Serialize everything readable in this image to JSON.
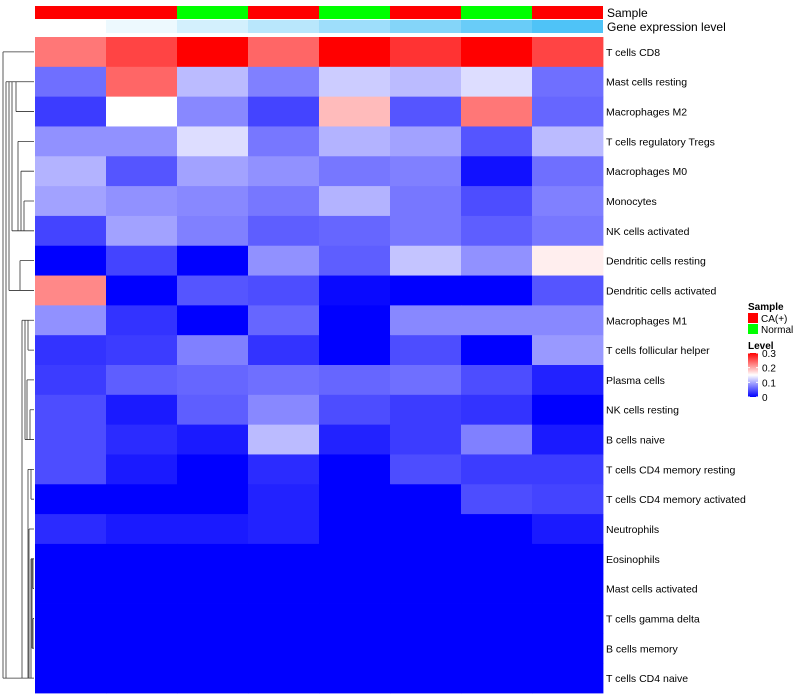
{
  "chart_data": {
    "type": "heatmap",
    "annotation_titles": {
      "sample": "Sample",
      "expression": "Gene expression level"
    },
    "samples": [
      "CA(+)",
      "CA(+)",
      "Normal",
      "CA(+)",
      "Normal",
      "CA(+)",
      "Normal",
      "CA(+)"
    ],
    "expression_levels": [
      0.0,
      0.1,
      0.25,
      0.4,
      0.55,
      0.7,
      0.85,
      1.0
    ],
    "rows": [
      "T cells CD8",
      "Mast cells resting",
      "Macrophages M2",
      "T cells regulatory  Tregs",
      "Macrophages M0",
      "Monocytes",
      "NK cells activated",
      "Dendritic cells resting",
      "Dendritic cells activated",
      "Macrophages M1",
      "T cells follicular helper",
      "Plasma cells",
      "NK cells resting",
      "B cells naive",
      "T cells CD4 memory resting",
      "T cells CD4 memory activated",
      "Neutrophils",
      "Eosinophils",
      "Mast cells activated",
      "T cells gamma delta",
      "B cells memory",
      "T cells CD4 naive"
    ],
    "values": [
      [
        0.23,
        0.26,
        0.3,
        0.24,
        0.3,
        0.27,
        0.3,
        0.26
      ],
      [
        0.065,
        0.24,
        0.11,
        0.075,
        0.12,
        0.11,
        0.13,
        0.065
      ],
      [
        0.035,
        0.15,
        0.08,
        0.04,
        0.19,
        0.05,
        0.23,
        0.06
      ],
      [
        0.085,
        0.085,
        0.13,
        0.07,
        0.105,
        0.095,
        0.05,
        0.11
      ],
      [
        0.105,
        0.05,
        0.095,
        0.085,
        0.07,
        0.075,
        0.01,
        0.065
      ],
      [
        0.095,
        0.085,
        0.08,
        0.07,
        0.105,
        0.07,
        0.045,
        0.075
      ],
      [
        0.04,
        0.095,
        0.075,
        0.055,
        0.06,
        0.07,
        0.055,
        0.07
      ],
      [
        0.0,
        0.04,
        0.0,
        0.085,
        0.055,
        0.115,
        0.085,
        0.16
      ],
      [
        0.22,
        0.0,
        0.05,
        0.045,
        0.005,
        0.0,
        0.0,
        0.05
      ],
      [
        0.085,
        0.03,
        0.0,
        0.06,
        0.0,
        0.08,
        0.08,
        0.08
      ],
      [
        0.03,
        0.035,
        0.075,
        0.03,
        0.0,
        0.045,
        0.0,
        0.09
      ],
      [
        0.035,
        0.055,
        0.06,
        0.065,
        0.06,
        0.065,
        0.045,
        0.02
      ],
      [
        0.045,
        0.015,
        0.055,
        0.08,
        0.045,
        0.035,
        0.03,
        0.0
      ],
      [
        0.045,
        0.025,
        0.015,
        0.11,
        0.02,
        0.035,
        0.075,
        0.015
      ],
      [
        0.045,
        0.015,
        0.0,
        0.025,
        0.0,
        0.045,
        0.035,
        0.035
      ],
      [
        0.0,
        0.0,
        0.0,
        0.02,
        0.0,
        0.0,
        0.045,
        0.04
      ],
      [
        0.025,
        0.015,
        0.015,
        0.02,
        0.0,
        0.0,
        0.0,
        0.015
      ],
      [
        0.0,
        0.0,
        0.0,
        0.0,
        0.0,
        0.0,
        0.0,
        0.0
      ],
      [
        0.0,
        0.0,
        0.0,
        0.0,
        0.0,
        0.0,
        0.0,
        0.0
      ],
      [
        0.0,
        0.0,
        0.0,
        0.0,
        0.0,
        0.0,
        0.0,
        0.0
      ],
      [
        0.0,
        0.0,
        0.0,
        0.0,
        0.0,
        0.0,
        0.0,
        0.0
      ],
      [
        0.0,
        0.0,
        0.0,
        0.0,
        0.0,
        0.0,
        0.0,
        0.0
      ]
    ],
    "color_scale": {
      "min": 0,
      "mid": 0.15,
      "max": 0.3,
      "low": "#0000ff",
      "mid_color": "#ffffff",
      "high": "#ff0000"
    },
    "legend": {
      "sample_title": "Sample",
      "sample_items": [
        {
          "label": "CA(+)",
          "color": "#ff0000"
        },
        {
          "label": "Normal",
          "color": "#00ff00"
        }
      ],
      "level_title": "Level",
      "level_ticks": [
        0.3,
        0.2,
        0.1,
        0
      ],
      "level_tick_labels": [
        "0.3",
        "0.2",
        "0.1",
        "0"
      ]
    },
    "annotation_colors": {
      "CA(+)": "#ff0000",
      "Normal": "#00ff00",
      "expr_low": "#ffffff",
      "expr_high": "#4fc3f7"
    }
  }
}
